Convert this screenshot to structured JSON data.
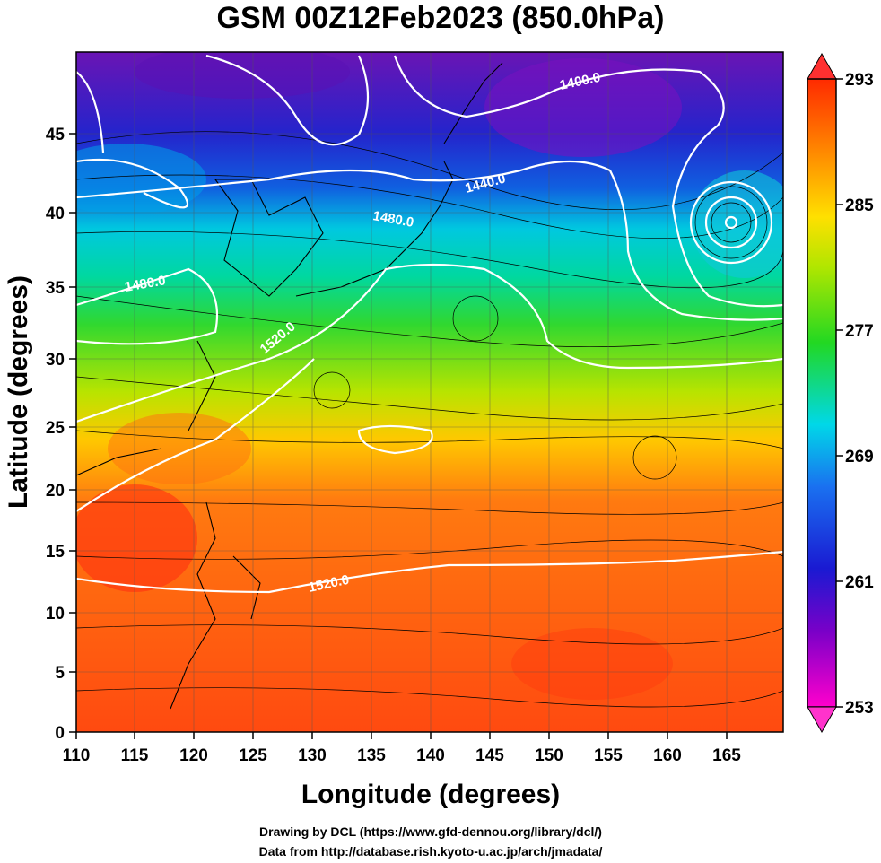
{
  "title": "GSM 00Z12Feb2023 (850.0hPa)",
  "axes": {
    "xlabel": "Longitude (degrees)",
    "ylabel": "Latitude  (degrees)",
    "x_ticks": [
      "110",
      "115",
      "120",
      "125",
      "130",
      "135",
      "140",
      "145",
      "150",
      "155",
      "160",
      "165"
    ],
    "y_ticks": [
      "0",
      "5",
      "10",
      "15",
      "20",
      "25",
      "30",
      "35",
      "40",
      "45"
    ]
  },
  "chart_data": {
    "type": "heatmap",
    "title": "GSM 00Z12Feb2023 (850.0hPa)",
    "xlabel": "Longitude (degrees)",
    "ylabel": "Latitude  (degrees)",
    "xlim": [
      110,
      170
    ],
    "ylim": [
      0,
      50
    ],
    "color_scale": {
      "ticks": [
        253,
        261,
        269,
        277,
        285,
        293
      ],
      "tick_labels": [
        "253",
        "261",
        "269",
        "277",
        "285",
        "293"
      ],
      "range": [
        253,
        293
      ],
      "colors": [
        "#ff00cc",
        "#7a00c8",
        "#1a1ad2",
        "#00a8f0",
        "#00e8c0",
        "#22d822",
        "#a8e600",
        "#ffe000",
        "#ff8c00",
        "#ff2a00"
      ]
    },
    "contours": [
      {
        "label": "1400.0",
        "value": 1400
      },
      {
        "label": "1440.0",
        "value": 1440
      },
      {
        "label": "1480.0",
        "value": 1480
      },
      {
        "label": "1520.0",
        "value": 1520
      }
    ],
    "overlays": [
      "streamlines",
      "coastlines",
      "grid"
    ]
  },
  "contour_labels": [
    "1400.0",
    "1440.0",
    "1480.0",
    "1480.0",
    "1520.0",
    "1520.0"
  ],
  "credits": {
    "line1": "Drawing by DCL (https://www.gfd-dennou.org/library/dcl/)",
    "line2": "Data from http://database.rish.kyoto-u.ac.jp/arch/jmadata/"
  }
}
